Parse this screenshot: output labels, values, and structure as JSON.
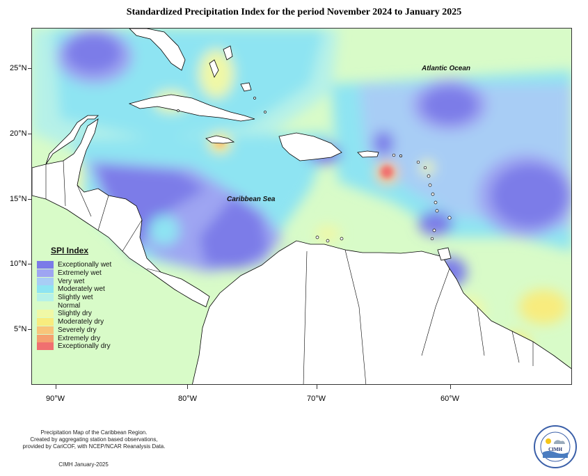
{
  "title": "Standardized Precipitation Index for the period November 2024 to January 2025",
  "map": {
    "ocean_labels": {
      "atlantic": "Atlantic Ocean",
      "caribbean": "Caribbean Sea"
    },
    "lat_labels": [
      "25°N",
      "20°N",
      "15°N",
      "10°N",
      "5°N"
    ],
    "lon_labels": [
      "90°W",
      "80°W",
      "70°W",
      "60°W"
    ]
  },
  "legend": {
    "title": "SPI Index",
    "items": [
      {
        "label": "Exceptionally wet",
        "color": "#7b7be8"
      },
      {
        "label": "Extremely wet",
        "color": "#9ea5f2"
      },
      {
        "label": "Very wet",
        "color": "#a8cdf5"
      },
      {
        "label": "Moderately wet",
        "color": "#8ee4f2"
      },
      {
        "label": "Slightly wet",
        "color": "#b6f1e8"
      },
      {
        "label": "Normal",
        "color": "#d8fbc8"
      },
      {
        "label": "Slightly dry",
        "color": "#f0f8a6"
      },
      {
        "label": "Moderately dry",
        "color": "#f8ec7e"
      },
      {
        "label": "Severely dry",
        "color": "#f8c47a"
      },
      {
        "label": "Extremely dry",
        "color": "#f5a070"
      },
      {
        "label": "Exceptionally dry",
        "color": "#f07070"
      }
    ]
  },
  "footer": {
    "line1": "Precipitation Map of the Caribbean Region.",
    "line2": "Created by aggregating station based observations,",
    "line3": "provided by CariCOF, with NCEP/NCAR Reanalysis Data.",
    "credit": "CIMH January-2025"
  },
  "logo": {
    "text": "CIMH"
  }
}
